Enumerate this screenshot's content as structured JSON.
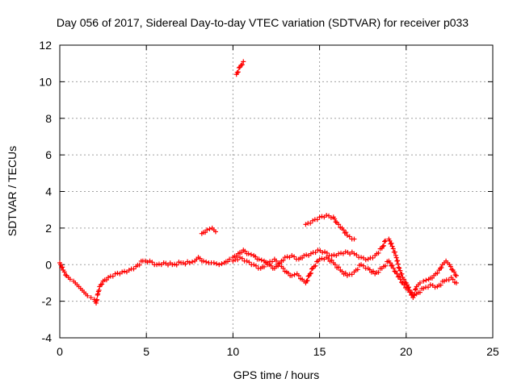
{
  "chart_data": {
    "type": "scatter",
    "title": "Day 056 of 2017, Sidereal Day-to-day VTEC variation (SDTVAR) for receiver p033",
    "xlabel": "GPS time / hours",
    "ylabel": "SDTVAR / TECUs",
    "xlim": [
      0,
      25
    ],
    "ylim": [
      -4,
      12
    ],
    "xticks": [
      0,
      5,
      10,
      15,
      20,
      25
    ],
    "yticks": [
      -4,
      -2,
      0,
      2,
      4,
      6,
      8,
      10,
      12
    ],
    "xtick_labels": [
      "0",
      "5",
      "10",
      "15",
      "20",
      "25"
    ],
    "ytick_labels": [
      "-4",
      "-2",
      "0",
      "2",
      "4",
      "6",
      "8",
      "10",
      "12"
    ],
    "grid": true,
    "marker": "+",
    "color": "#ff0000",
    "series": [
      {
        "name": "main-track",
        "points": [
          [
            0.0,
            0.1
          ],
          [
            0.2,
            -0.3
          ],
          [
            0.4,
            -0.6
          ],
          [
            0.6,
            -0.8
          ],
          [
            0.8,
            -0.9
          ],
          [
            1.0,
            -1.1
          ],
          [
            1.2,
            -1.3
          ],
          [
            1.4,
            -1.5
          ],
          [
            1.6,
            -1.7
          ],
          [
            1.8,
            -1.8
          ],
          [
            2.0,
            -1.9
          ],
          [
            2.1,
            -2.1
          ],
          [
            2.2,
            -1.6
          ],
          [
            2.3,
            -1.2
          ],
          [
            2.5,
            -0.9
          ],
          [
            2.8,
            -0.7
          ],
          [
            3.2,
            -0.5
          ],
          [
            3.6,
            -0.4
          ],
          [
            4.0,
            -0.3
          ],
          [
            4.4,
            -0.1
          ],
          [
            4.8,
            0.2
          ],
          [
            5.2,
            0.2
          ],
          [
            5.6,
            0.0
          ],
          [
            6.0,
            0.1
          ],
          [
            6.5,
            0.0
          ],
          [
            7.0,
            0.1
          ],
          [
            7.5,
            0.1
          ],
          [
            7.8,
            0.2
          ],
          [
            8.0,
            0.4
          ],
          [
            8.3,
            0.2
          ],
          [
            8.6,
            0.1
          ],
          [
            8.9,
            0.1
          ],
          [
            9.2,
            0.0
          ],
          [
            9.5,
            0.1
          ],
          [
            9.8,
            0.3
          ],
          [
            10.0,
            0.4
          ],
          [
            10.3,
            0.6
          ],
          [
            10.6,
            0.8
          ],
          [
            10.9,
            0.6
          ],
          [
            11.2,
            0.5
          ],
          [
            11.5,
            0.3
          ],
          [
            11.8,
            0.2
          ],
          [
            12.1,
            0.0
          ],
          [
            12.4,
            -0.2
          ],
          [
            12.7,
            0.1
          ],
          [
            13.0,
            0.4
          ],
          [
            13.4,
            0.5
          ],
          [
            13.8,
            0.3
          ],
          [
            14.1,
            0.5
          ],
          [
            14.5,
            0.6
          ],
          [
            14.9,
            0.8
          ],
          [
            15.3,
            0.7
          ],
          [
            15.7,
            0.5
          ],
          [
            16.1,
            0.6
          ],
          [
            16.5,
            0.7
          ],
          [
            17.0,
            0.6
          ],
          [
            17.4,
            0.4
          ],
          [
            17.8,
            0.3
          ],
          [
            18.2,
            0.5
          ],
          [
            18.6,
            0.9
          ],
          [
            18.8,
            1.3
          ],
          [
            19.0,
            1.4
          ],
          [
            19.2,
            1.0
          ],
          [
            19.4,
            0.5
          ],
          [
            19.6,
            -0.2
          ],
          [
            19.8,
            -0.7
          ],
          [
            20.0,
            -1.0
          ],
          [
            20.2,
            -1.4
          ],
          [
            20.4,
            -1.8
          ],
          [
            20.6,
            -1.2
          ],
          [
            20.8,
            -1.0
          ],
          [
            21.0,
            -0.9
          ],
          [
            21.3,
            -0.8
          ],
          [
            21.6,
            -0.6
          ],
          [
            21.9,
            -0.3
          ],
          [
            22.1,
            0.0
          ],
          [
            22.3,
            0.2
          ],
          [
            22.5,
            0.0
          ],
          [
            22.7,
            -0.3
          ],
          [
            22.9,
            -0.6
          ]
        ]
      },
      {
        "name": "secondary-track",
        "points": [
          [
            10.0,
            0.2
          ],
          [
            10.4,
            0.4
          ],
          [
            10.8,
            0.2
          ],
          [
            11.2,
            0.0
          ],
          [
            11.6,
            -0.2
          ],
          [
            12.0,
            0.1
          ],
          [
            12.4,
            0.3
          ],
          [
            12.8,
            -0.1
          ],
          [
            13.1,
            -0.4
          ],
          [
            13.4,
            -0.6
          ],
          [
            13.7,
            -0.5
          ],
          [
            14.0,
            -0.8
          ],
          [
            14.2,
            -1.0
          ],
          [
            14.4,
            -0.6
          ],
          [
            14.6,
            -0.2
          ],
          [
            15.0,
            0.3
          ],
          [
            15.4,
            0.4
          ],
          [
            15.8,
            0.1
          ],
          [
            16.2,
            -0.3
          ],
          [
            16.6,
            -0.6
          ],
          [
            17.0,
            -0.4
          ],
          [
            17.4,
            0.0
          ],
          [
            17.8,
            -0.2
          ],
          [
            18.2,
            -0.5
          ],
          [
            18.6,
            -0.2
          ],
          [
            19.0,
            0.2
          ],
          [
            19.4,
            -0.4
          ],
          [
            19.8,
            -1.0
          ],
          [
            20.2,
            -1.5
          ],
          [
            20.6,
            -1.6
          ],
          [
            21.0,
            -1.3
          ],
          [
            21.4,
            -1.1
          ],
          [
            21.8,
            -1.2
          ],
          [
            22.2,
            -0.9
          ],
          [
            22.6,
            -0.7
          ],
          [
            22.9,
            -1.0
          ]
        ]
      },
      {
        "name": "cluster-8.8h",
        "points": [
          [
            8.2,
            1.7
          ],
          [
            8.5,
            1.9
          ],
          [
            8.8,
            2.0
          ],
          [
            9.0,
            1.8
          ]
        ]
      },
      {
        "name": "cluster-10.5h",
        "points": [
          [
            10.2,
            10.4
          ],
          [
            10.4,
            10.8
          ],
          [
            10.6,
            11.1
          ]
        ]
      },
      {
        "name": "cluster-15h",
        "points": [
          [
            14.2,
            2.2
          ],
          [
            14.6,
            2.4
          ],
          [
            15.0,
            2.6
          ],
          [
            15.4,
            2.7
          ],
          [
            15.8,
            2.6
          ],
          [
            16.0,
            2.3
          ],
          [
            16.3,
            2.0
          ],
          [
            16.6,
            1.6
          ],
          [
            17.0,
            1.4
          ]
        ]
      }
    ]
  }
}
